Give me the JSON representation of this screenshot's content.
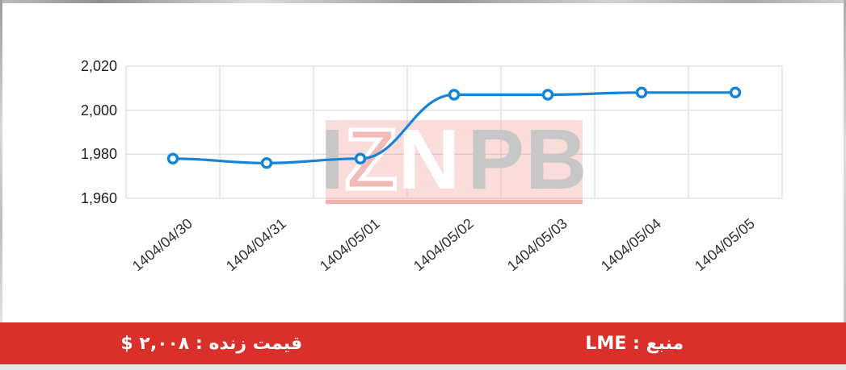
{
  "chart_data": {
    "type": "line",
    "title": "",
    "categories": [
      "1404/04/30",
      "1404/04/31",
      "1404/05/01",
      "1404/05/02",
      "1404/05/03",
      "1404/05/04",
      "1404/05/05"
    ],
    "series": [
      {
        "name": "LME price",
        "values": [
          1978,
          1976,
          1978,
          2007,
          2007,
          2008,
          2008
        ]
      }
    ],
    "xlabel": "",
    "ylabel": "",
    "ylim": [
      1960,
      2020
    ],
    "yticks": [
      2020,
      2000,
      1980,
      1960
    ],
    "ytick_labels": [
      "2,020",
      "2,000",
      "1,980",
      "1,960"
    ],
    "x_label_rotation_deg": -40,
    "grid": "on",
    "legend": "none",
    "line_color": "#1583d8",
    "grid_color": "#dfdfdf",
    "marker": "open-circle"
  },
  "watermark": {
    "text": "IZNPB",
    "letters": [
      "I",
      "Z",
      "N",
      "P",
      "B"
    ],
    "grey_color": "#c7c7c7",
    "pink_color": "#f3bbb8"
  },
  "footer": {
    "bg_color": "#d9302b",
    "text_color": "#ffffff",
    "live_price_text": "قیمت زنده : ۲,۰۰۸ $",
    "source_text": "منبع : LME"
  }
}
